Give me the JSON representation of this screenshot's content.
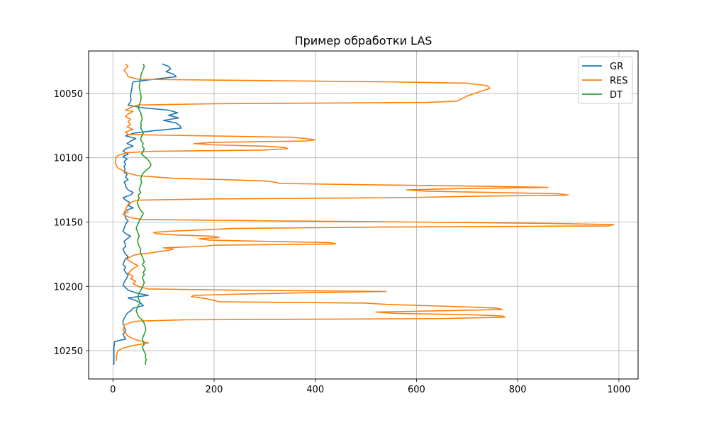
{
  "chart_data": {
    "type": "line",
    "title": "Пример обработки LAS",
    "xlabel": "",
    "ylabel": "",
    "xlim": [
      -48,
      1038
    ],
    "ylim": [
      10272,
      10017
    ],
    "x_ticks": [
      0,
      200,
      400,
      600,
      800,
      1000
    ],
    "y_ticks": [
      10050,
      10100,
      10150,
      10200,
      10250
    ],
    "grid": true,
    "legend_position": "top-right",
    "series": [
      {
        "name": "GR",
        "color": "#1f77b4",
        "depth": [
          10027,
          10029,
          10031,
          10033,
          10035,
          10037,
          10039,
          10041,
          10043,
          10045,
          10047,
          10049,
          10051,
          10053,
          10055,
          10057,
          10059,
          10061,
          10063,
          10065,
          10067,
          10069,
          10071,
          10073,
          10075,
          10077,
          10079,
          10081,
          10083,
          10085,
          10087,
          10089,
          10091,
          10093,
          10095,
          10097,
          10099,
          10101,
          10103,
          10105,
          10107,
          10109,
          10111,
          10113,
          10115,
          10117,
          10119,
          10121,
          10123,
          10125,
          10127,
          10129,
          10131,
          10133,
          10135,
          10137,
          10139,
          10141,
          10143,
          10145,
          10147,
          10149,
          10151,
          10153,
          10155,
          10157,
          10159,
          10161,
          10163,
          10165,
          10167,
          10169,
          10171,
          10173,
          10175,
          10177,
          10179,
          10181,
          10183,
          10185,
          10187,
          10189,
          10191,
          10193,
          10195,
          10197,
          10199,
          10201,
          10203,
          10205,
          10207,
          10209,
          10211,
          10213,
          10215,
          10217,
          10219,
          10221,
          10223,
          10225,
          10227,
          10229,
          10231,
          10233,
          10235,
          10237,
          10239,
          10241,
          10243,
          10245,
          10247,
          10249,
          10251,
          10253,
          10255,
          10257,
          10259,
          10261
        ],
        "values": [
          97,
          110,
          114,
          105,
          120,
          125,
          80,
          40,
          38,
          38,
          37,
          36,
          35,
          35,
          36,
          34,
          30,
          55,
          110,
          128,
          110,
          130,
          100,
          125,
          132,
          135,
          80,
          40,
          25,
          45,
          35,
          28,
          40,
          25,
          20,
          30,
          20,
          28,
          22,
          25,
          22,
          24,
          22,
          28,
          25,
          30,
          22,
          25,
          26,
          30,
          40,
          35,
          20,
          25,
          35,
          30,
          40,
          25,
          22,
          24,
          25,
          30,
          26,
          24,
          22,
          20,
          25,
          35,
          28,
          22,
          24,
          25,
          20,
          22,
          25,
          30,
          24,
          22,
          20,
          25,
          22,
          25,
          30,
          28,
          25,
          22,
          20,
          25,
          30,
          45,
          70,
          30,
          45,
          55,
          60,
          40,
          35,
          28,
          25,
          22,
          20,
          20,
          22,
          24,
          25,
          20,
          22,
          25,
          3,
          3,
          2,
          2,
          2,
          2,
          2,
          2,
          2,
          2
        ]
      },
      {
        "name": "RES",
        "color": "#ff7f0e",
        "depth": [
          10027,
          10029,
          10032,
          10035,
          10037,
          10039,
          10040,
          10041,
          10042,
          10043,
          10044,
          10046,
          10048,
          10050,
          10052,
          10054,
          10055,
          10056,
          10057,
          10058,
          10059,
          10060,
          10061,
          10062,
          10063,
          10064,
          10066,
          10068,
          10070,
          10072,
          10074,
          10076,
          10078,
          10080,
          10082,
          10084,
          10085,
          10086,
          10087,
          10088,
          10089,
          10090,
          10091,
          10092,
          10093,
          10094,
          10095,
          10096,
          10097,
          10098,
          10100,
          10102,
          10104,
          10106,
          10108,
          10110,
          10112,
          10114,
          10116,
          10117,
          10118,
          10119,
          10120,
          10121,
          10122,
          10123,
          10124,
          10125,
          10126,
          10127,
          10128,
          10129,
          10130,
          10131,
          10132,
          10133,
          10134,
          10135,
          10136,
          10138,
          10140,
          10142,
          10144,
          10146,
          10147,
          10148,
          10149,
          10150,
          10151,
          10152,
          10153,
          10154,
          10155,
          10156,
          10157,
          10158,
          10159,
          10160,
          10161,
          10162,
          10163,
          10164,
          10165,
          10166,
          10167,
          10168,
          10169,
          10170,
          10171,
          10172,
          10173,
          10174,
          10175,
          10176,
          10177,
          10178,
          10179,
          10180,
          10182,
          10184,
          10186,
          10188,
          10190,
          10192,
          10194,
          10196,
          10198,
          10200,
          10201,
          10202,
          10203,
          10204,
          10205,
          10206,
          10207,
          10208,
          10209,
          10210,
          10211,
          10212,
          10213,
          10214,
          10215,
          10216,
          10217,
          10218,
          10219,
          10220,
          10221,
          10222,
          10223,
          10224,
          10225,
          10226,
          10227,
          10228,
          10229,
          10230,
          10232,
          10234,
          10236,
          10238,
          10240,
          10242,
          10244,
          10246,
          10248,
          10250,
          10252,
          10254,
          10256,
          10258,
          10260
        ],
        "values": [
          25,
          30,
          22,
          28,
          30,
          50,
          300,
          550,
          700,
          720,
          740,
          745,
          730,
          715,
          700,
          690,
          685,
          680,
          620,
          200,
          50,
          40,
          35,
          30,
          25,
          40,
          30,
          25,
          35,
          30,
          35,
          28,
          40,
          25,
          30,
          350,
          380,
          400,
          380,
          200,
          160,
          200,
          300,
          340,
          345,
          300,
          80,
          30,
          20,
          10,
          6,
          5,
          5,
          7,
          10,
          20,
          30,
          50,
          120,
          220,
          300,
          320,
          330,
          500,
          700,
          860,
          680,
          580,
          620,
          750,
          880,
          900,
          700,
          580,
          200,
          50,
          40,
          35,
          30,
          28,
          25,
          30,
          20,
          30,
          40,
          60,
          300,
          600,
          850,
          990,
          980,
          500,
          235,
          180,
          120,
          80,
          85,
          120,
          200,
          210,
          170,
          190,
          300,
          430,
          440,
          200,
          172,
          100,
          120,
          110,
          90,
          75,
          50,
          40,
          35,
          30,
          28,
          32,
          40,
          50,
          40,
          35,
          30,
          40,
          35,
          45,
          40,
          50,
          60,
          70,
          250,
          540,
          380,
          250,
          160,
          155,
          175,
          190,
          200,
          210,
          500,
          540,
          620,
          700,
          760,
          770,
          640,
          520,
          560,
          700,
          770,
          775,
          650,
          140,
          50,
          35,
          30,
          22,
          22,
          20,
          25,
          28,
          35,
          50,
          70,
          40,
          20,
          10,
          8,
          7,
          7,
          7
        ]
      },
      {
        "name": "DT",
        "color": "#2ca02c",
        "depth": [
          10027,
          10029,
          10031,
          10033,
          10035,
          10037,
          10039,
          10041,
          10043,
          10045,
          10047,
          10049,
          10051,
          10053,
          10055,
          10057,
          10059,
          10061,
          10063,
          10065,
          10067,
          10069,
          10071,
          10073,
          10075,
          10077,
          10079,
          10081,
          10083,
          10085,
          10087,
          10089,
          10091,
          10093,
          10095,
          10097,
          10099,
          10101,
          10103,
          10105,
          10107,
          10109,
          10111,
          10113,
          10115,
          10117,
          10119,
          10121,
          10123,
          10125,
          10127,
          10129,
          10131,
          10133,
          10135,
          10137,
          10139,
          10141,
          10143,
          10145,
          10147,
          10149,
          10151,
          10153,
          10155,
          10157,
          10159,
          10161,
          10163,
          10165,
          10167,
          10169,
          10171,
          10173,
          10175,
          10177,
          10179,
          10181,
          10183,
          10185,
          10187,
          10189,
          10191,
          10193,
          10195,
          10197,
          10199,
          10201,
          10203,
          10205,
          10207,
          10209,
          10211,
          10213,
          10215,
          10217,
          10219,
          10221,
          10223,
          10225,
          10227,
          10229,
          10231,
          10233,
          10235,
          10237,
          10239,
          10241,
          10243,
          10245,
          10247,
          10249,
          10251,
          10253,
          10255,
          10257,
          10259,
          10261
        ],
        "values": [
          60,
          62,
          60,
          58,
          56,
          55,
          54,
          53,
          53,
          52,
          53,
          54,
          55,
          56,
          55,
          54,
          52,
          50,
          52,
          55,
          56,
          58,
          57,
          55,
          56,
          55,
          58,
          60,
          57,
          55,
          56,
          60,
          58,
          62,
          60,
          56,
          62,
          68,
          72,
          75,
          74,
          68,
          62,
          58,
          56,
          55,
          57,
          55,
          53,
          52,
          55,
          50,
          52,
          50,
          48,
          50,
          52,
          55,
          60,
          58,
          55,
          52,
          50,
          48,
          46,
          48,
          50,
          52,
          50,
          49,
          50,
          52,
          55,
          54,
          56,
          58,
          60,
          62,
          58,
          62,
          64,
          60,
          62,
          58,
          60,
          62,
          60,
          58,
          55,
          52,
          50,
          50,
          52,
          54,
          50,
          48,
          46,
          48,
          50,
          55,
          60,
          62,
          64,
          65,
          64,
          62,
          60,
          58,
          60,
          62,
          58,
          60,
          62,
          65,
          64,
          66,
          64,
          65
        ]
      }
    ]
  }
}
